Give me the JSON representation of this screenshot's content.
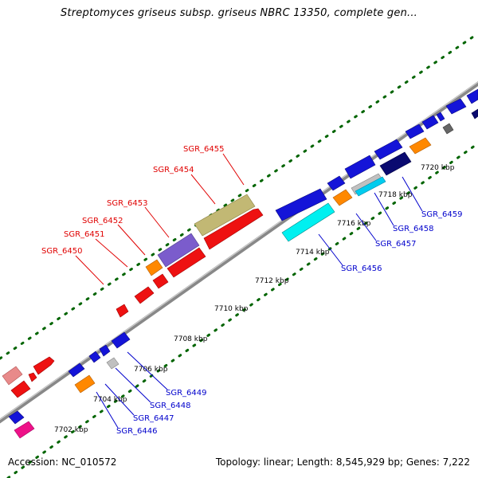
{
  "title": "Streptomyces griseus subsp. griseus NBRC 13350, complete gen...",
  "accession": "Accession: NC_010572",
  "topology": "Topology: linear; Length: 8,545,929 bp; Genes: 7,222",
  "ticks": [
    {
      "label": "7702 kbp"
    },
    {
      "label": "7704 kbp"
    },
    {
      "label": "7706 kbp"
    },
    {
      "label": "7708 kbp"
    },
    {
      "label": "7710 kbp"
    },
    {
      "label": "7712 kbp"
    },
    {
      "label": "7714 kbp"
    },
    {
      "label": "7716 kbp"
    },
    {
      "label": "7718 kbp"
    },
    {
      "label": "7720 kbp"
    }
  ],
  "gene_labels_top": [
    "SGR_6450",
    "SGR_6451",
    "SGR_6452",
    "SGR_6453",
    "SGR_6454",
    "SGR_6455"
  ],
  "gene_labels_bottom": [
    "SGR_6446",
    "SGR_6447",
    "SGR_6448",
    "SGR_6449",
    "SGR_6456",
    "SGR_6457",
    "SGR_6458",
    "SGR_6459"
  ],
  "colors": {
    "label_top": "#e00000",
    "label_bottom": "#0000cc",
    "backbone": "#888888",
    "tick": "#006400"
  }
}
